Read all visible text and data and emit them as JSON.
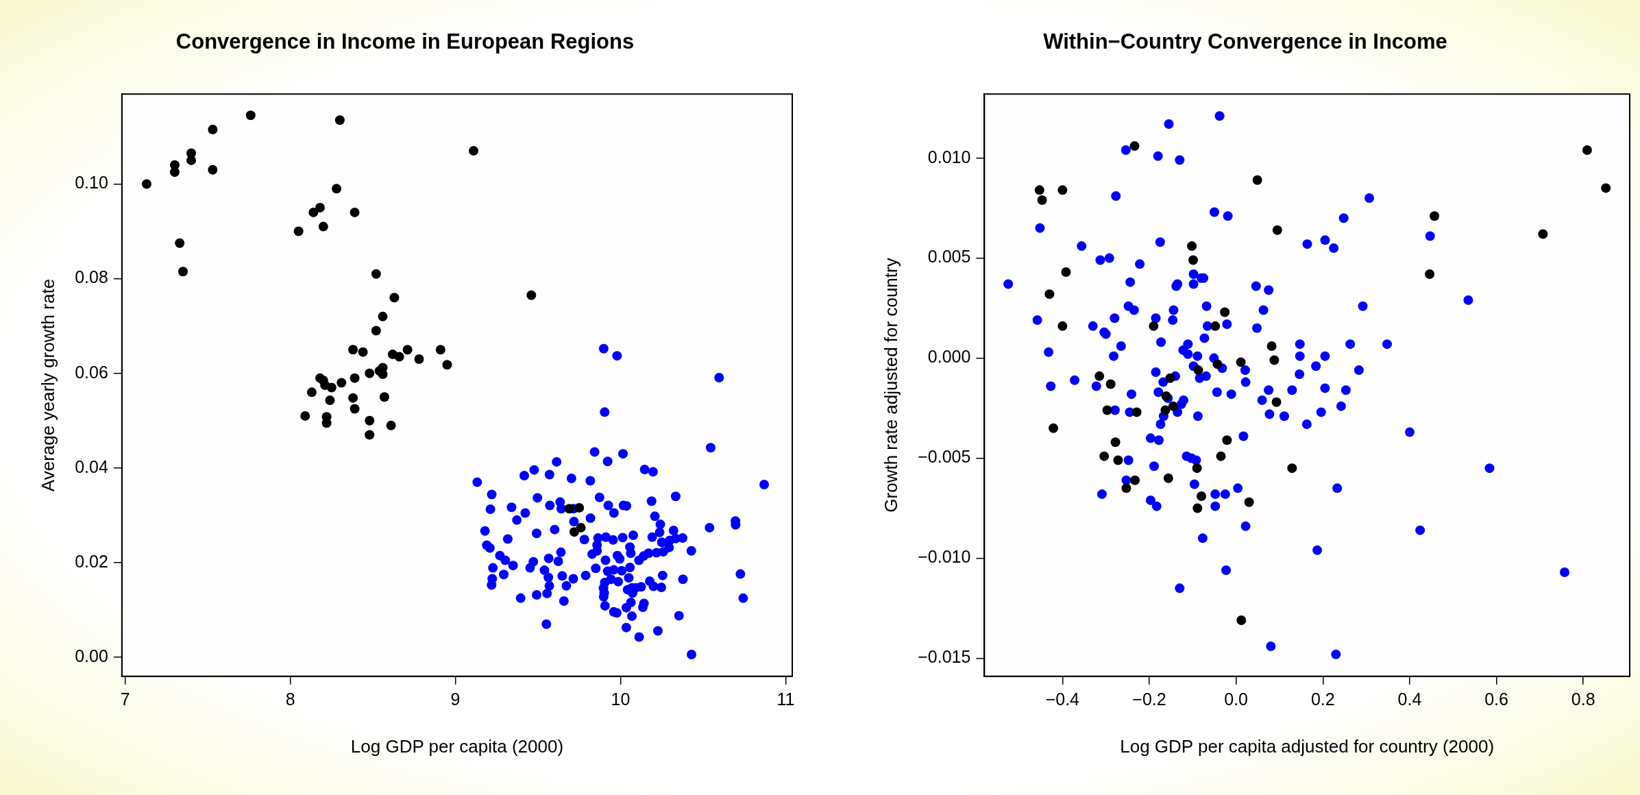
{
  "chart_data": [
    {
      "type": "scatter",
      "title": "Convergence in Income in European Regions",
      "xlabel": "Log GDP per capita (2000)",
      "ylabel": "Average yearly growth rate",
      "xlim": [
        6.98,
        11.04
      ],
      "ylim": [
        -0.004,
        0.119
      ],
      "xticks": [
        7,
        8,
        9,
        10,
        11
      ],
      "yticks": [
        {
          "value": 0,
          "label": "0.00"
        },
        {
          "value": 0.02,
          "label": "0.02"
        },
        {
          "value": 0.04,
          "label": "0.04"
        },
        {
          "value": 0.06,
          "label": "0.06"
        },
        {
          "value": 0.08,
          "label": "0.08"
        },
        {
          "value": 0.1,
          "label": "0.10"
        }
      ],
      "grid": false,
      "marker": "circle",
      "series": [
        {
          "color": "#000000",
          "x": [
            7.13,
            7.3,
            7.3,
            7.4,
            7.4,
            7.33,
            7.35,
            7.53,
            7.53,
            7.76,
            8.3,
            9.11,
            8.05,
            8.14,
            8.18,
            8.2,
            8.28,
            8.39,
            8.52,
            8.63,
            8.56,
            8.52,
            9.46,
            8.38,
            8.44,
            8.56,
            8.62,
            8.66,
            8.71,
            8.78,
            8.91,
            8.95,
            8.13,
            8.18,
            8.2,
            8.21,
            8.25,
            8.31,
            8.39,
            8.48,
            8.54,
            8.56,
            8.09,
            8.24,
            8.38,
            8.57,
            8.22,
            8.22,
            8.39,
            8.48,
            8.48,
            8.61,
            9.69,
            9.75,
            9.76,
            9.72
          ],
          "values": [
            0.1,
            0.104,
            0.1025,
            0.1065,
            0.105,
            0.0875,
            0.0815,
            0.1115,
            0.103,
            0.1145,
            0.1135,
            0.107,
            0.09,
            0.094,
            0.095,
            0.091,
            0.099,
            0.094,
            0.081,
            0.076,
            0.072,
            0.069,
            0.0765,
            0.065,
            0.0645,
            0.0612,
            0.064,
            0.0635,
            0.065,
            0.063,
            0.065,
            0.0618,
            0.056,
            0.059,
            0.0585,
            0.0575,
            0.057,
            0.058,
            0.059,
            0.06,
            0.0605,
            0.0598,
            0.051,
            0.0543,
            0.0548,
            0.055,
            0.0508,
            0.0495,
            0.0525,
            0.05,
            0.047,
            0.049,
            0.0314,
            0.0316,
            0.0274,
            0.0265
          ]
        },
        {
          "color": "#0000ff",
          "x": [
            9.898,
            9.979,
            10.597,
            9.904,
            9.843,
            10.015,
            9.922,
            10.546,
            9.613,
            9.477,
            9.417,
            9.57,
            9.703,
            9.817,
            10.146,
            10.197,
            10.87,
            9.132,
            9.22,
            9.497,
            9.873,
            10.334,
            10.188,
            9.212,
            9.34,
            9.423,
            9.372,
            9.572,
            9.634,
            9.641,
            9.715,
            9.718,
            9.818,
            9.926,
            9.96,
            10.018,
            10.036,
            10.208,
            10.241,
            10.321,
            10.539,
            10.696,
            10.697,
            9.179,
            9.317,
            9.492,
            9.601,
            9.781,
            9.864,
            9.911,
            9.955,
            10.013,
            10.077,
            10.192,
            10.237,
            10.25,
            10.298,
            10.335,
            10.376,
            10.294,
            10.429,
            9.19,
            9.209,
            9.858,
            10.057,
            10.062,
            9.858,
            9.828,
            9.981,
            9.995,
            10.112,
            10.14,
            10.17,
            10.218,
            10.259,
            9.269,
            9.302,
            9.349,
            9.639,
            9.565,
            9.623,
            9.472,
            9.227,
            9.452,
            9.539,
            9.909,
            9.85,
            9.922,
            9.959,
            10.007,
            10.057,
            10.05,
            9.293,
            9.563,
            9.647,
            9.714,
            9.789,
            9.942,
            9.986,
            9.904,
            10.177,
            10.255,
            10.378,
            10.726,
            9.223,
            9.219,
            9.569,
            9.672,
            9.897,
            9.901,
            9.898,
            10.043,
            10.069,
            10.094,
            10.125,
            10.073,
            10.199,
            10.247,
            10.743,
            9.395,
            9.492,
            9.555,
            9.657,
            9.906,
            10.063,
            10.142,
            10.135,
            10.035,
            9.959,
            9.977,
            10.069,
            10.354,
            9.551,
            10.035,
            10.226,
            10.113,
            10.43
          ],
          "values": [
            0.0652,
            0.0637,
            0.0591,
            0.0518,
            0.0434,
            0.043,
            0.0414,
            0.0443,
            0.0413,
            0.0396,
            0.0384,
            0.0386,
            0.0378,
            0.0373,
            0.0397,
            0.0392,
            0.0365,
            0.037,
            0.0344,
            0.0337,
            0.0338,
            0.034,
            0.033,
            0.0313,
            0.0317,
            0.0305,
            0.029,
            0.0321,
            0.0328,
            0.0314,
            0.0314,
            0.0287,
            0.0294,
            0.0321,
            0.0305,
            0.0321,
            0.032,
            0.0298,
            0.0281,
            0.0268,
            0.0274,
            0.0288,
            0.028,
            0.0267,
            0.025,
            0.0262,
            0.027,
            0.0249,
            0.0252,
            0.0254,
            0.0248,
            0.0253,
            0.0258,
            0.0254,
            0.0264,
            0.0243,
            0.0247,
            0.0251,
            0.0252,
            0.0232,
            0.0225,
            0.0237,
            0.0231,
            0.0237,
            0.0233,
            0.022,
            0.0225,
            0.0218,
            0.0215,
            0.0208,
            0.0205,
            0.0214,
            0.022,
            0.0221,
            0.0223,
            0.0215,
            0.0205,
            0.0194,
            0.0222,
            0.0209,
            0.0203,
            0.0202,
            0.0189,
            0.0189,
            0.0184,
            0.0205,
            0.0188,
            0.0182,
            0.0185,
            0.0183,
            0.019,
            0.0168,
            0.0175,
            0.0169,
            0.0172,
            0.0166,
            0.0173,
            0.0165,
            0.016,
            0.0158,
            0.0161,
            0.0173,
            0.0165,
            0.0176,
            0.0166,
            0.0153,
            0.0151,
            0.0151,
            0.0146,
            0.0136,
            0.0128,
            0.0143,
            0.0147,
            0.0147,
            0.0149,
            0.0136,
            0.015,
            0.0148,
            0.0125,
            0.0125,
            0.0132,
            0.0135,
            0.0119,
            0.0109,
            0.0116,
            0.0114,
            0.0106,
            0.0105,
            0.0096,
            0.0094,
            0.0087,
            0.0088,
            0.007,
            0.0063,
            0.0056,
            0.0043,
            0.0006
          ]
        }
      ]
    },
    {
      "type": "scatter",
      "title": "Within−Country Convergence in Income",
      "xlabel": "Log GDP per capita adjusted for country (2000)",
      "ylabel": "Growth rate adjusted for country",
      "xlim": [
        -0.58,
        0.907
      ],
      "ylim": [
        -0.0159,
        0.0132
      ],
      "xticks": [
        {
          "value": -0.4,
          "label": "−0.4"
        },
        {
          "value": -0.2,
          "label": "−0.2"
        },
        {
          "value": 0,
          "label": "0.0"
        },
        {
          "value": 0.2,
          "label": "0.2"
        },
        {
          "value": 0.4,
          "label": "0.4"
        },
        {
          "value": 0.6,
          "label": "0.6"
        },
        {
          "value": 0.8,
          "label": "0.8"
        }
      ],
      "yticks": [
        {
          "value": -0.015,
          "label": "−0.015"
        },
        {
          "value": -0.01,
          "label": "−0.010"
        },
        {
          "value": -0.005,
          "label": "−0.005"
        },
        {
          "value": 0,
          "label": "0.000"
        },
        {
          "value": 0.005,
          "label": "0.005"
        },
        {
          "value": 0.01,
          "label": "0.010"
        }
      ],
      "grid": false,
      "marker": "circle",
      "series": [
        {
          "color": "#000000",
          "x": [
            -0.234,
            -0.453,
            -0.447,
            -0.4,
            0.049,
            0.095,
            -0.102,
            -0.099,
            -0.392,
            -0.43,
            -0.4,
            -0.026,
            -0.19,
            -0.048,
            0.082,
            0.088,
            0.011,
            -0.043,
            -0.087,
            -0.152,
            -0.315,
            -0.289,
            -0.161,
            -0.145,
            -0.163,
            -0.297,
            -0.229,
            0.093,
            -0.421,
            -0.021,
            -0.278,
            -0.035,
            -0.304,
            -0.272,
            0.129,
            -0.09,
            -0.233,
            -0.156,
            -0.253,
            -0.08,
            0.03,
            -0.089,
            0.012,
            0.809,
            0.852,
            0.457,
            0.707,
            0.446
          ],
          "values": [
            0.0106,
            0.0084,
            0.0079,
            0.0084,
            0.0089,
            0.0064,
            0.0056,
            0.0049,
            0.0043,
            0.0032,
            0.0016,
            0.0023,
            0.0016,
            0.0016,
            0.0006,
            -0.0001,
            -0.0002,
            -0.0003,
            -0.0006,
            -0.001,
            -0.0009,
            -0.0013,
            -0.0019,
            -0.0024,
            -0.0026,
            -0.0026,
            -0.0027,
            -0.0022,
            -0.0035,
            -0.0041,
            -0.0042,
            -0.0049,
            -0.0049,
            -0.0051,
            -0.0055,
            -0.0055,
            -0.0061,
            -0.006,
            -0.0065,
            -0.0069,
            -0.0072,
            -0.0075,
            -0.0131,
            0.0104,
            0.0085,
            0.0071,
            0.0062,
            0.0042
          ]
        },
        {
          "color": "#0000ff",
          "x": [
            -0.038,
            -0.155,
            -0.254,
            -0.18,
            -0.13,
            -0.277,
            -0.452,
            -0.05,
            -0.019,
            -0.356,
            -0.175,
            -0.313,
            -0.292,
            -0.222,
            -0.525,
            -0.244,
            -0.098,
            -0.098,
            -0.08,
            -0.075,
            -0.138,
            -0.135,
            0.046,
            0.075,
            -0.248,
            -0.235,
            -0.144,
            -0.146,
            0.063,
            -0.458,
            -0.28,
            -0.185,
            -0.33,
            -0.304,
            -0.3,
            -0.068,
            -0.066,
            -0.021,
            0.048,
            -0.073,
            -0.173,
            -0.111,
            -0.122,
            -0.111,
            -0.432,
            -0.265,
            -0.282,
            -0.089,
            -0.051,
            -0.098,
            -0.032,
            0.021,
            -0.185,
            -0.084,
            -0.069,
            0.022,
            -0.14,
            -0.168,
            -0.372,
            -0.427,
            -0.322,
            -0.044,
            -0.179,
            0.075,
            0.06,
            0.129,
            -0.011,
            -0.157,
            -0.121,
            -0.126,
            -0.241,
            -0.279,
            -0.245,
            -0.135,
            -0.088,
            0.077,
            0.111,
            -0.167,
            -0.174,
            -0.197,
            -0.178,
            0.017,
            -0.114,
            -0.103,
            -0.092,
            -0.248,
            -0.189,
            -0.253,
            -0.309,
            -0.096,
            0.004,
            -0.048,
            -0.025,
            -0.197,
            -0.183,
            -0.048,
            0.022,
            -0.077,
            -0.023,
            -0.13,
            0.08,
            0.147,
            0.147,
            0.146,
            0.307,
            0.248,
            0.164,
            0.205,
            0.225,
            0.447,
            0.535,
            0.292,
            0.263,
            0.348,
            0.205,
            0.184,
            0.283,
            0.205,
            0.253,
            0.242,
            0.196,
            0.163,
            0.4,
            0.584,
            0.233,
            0.424,
            0.187,
            0.757,
            0.23
          ],
          "values": [
            0.0121,
            0.0117,
            0.0104,
            0.0101,
            0.0099,
            0.0081,
            0.0065,
            0.0073,
            0.0071,
            0.0056,
            0.0058,
            0.0049,
            0.005,
            0.0047,
            0.0037,
            0.0038,
            0.0042,
            0.0037,
            0.004,
            0.004,
            0.0036,
            0.0037,
            0.0036,
            0.0034,
            0.0026,
            0.0024,
            0.0024,
            0.0019,
            0.0024,
            0.0019,
            0.002,
            0.002,
            0.0016,
            0.0013,
            0.0012,
            0.0026,
            0.0016,
            0.0017,
            0.0015,
            0.001,
            0.0008,
            0.0007,
            0.0004,
            0.0002,
            0.0003,
            0.0006,
            0.0001,
            0.0001,
            0.0,
            -0.0004,
            -0.0005,
            -0.0006,
            -0.0007,
            -0.001,
            -0.0009,
            -0.0012,
            -0.0009,
            -0.0012,
            -0.0011,
            -0.0014,
            -0.0014,
            -0.0017,
            -0.0017,
            -0.0016,
            -0.0021,
            -0.0016,
            -0.0018,
            -0.002,
            -0.0021,
            -0.0023,
            -0.0018,
            -0.0026,
            -0.0027,
            -0.0027,
            -0.0029,
            -0.0028,
            -0.0029,
            -0.0029,
            -0.0033,
            -0.004,
            -0.0041,
            -0.0039,
            -0.0049,
            -0.005,
            -0.0051,
            -0.0051,
            -0.0054,
            -0.0061,
            -0.0068,
            -0.0063,
            -0.0065,
            -0.0068,
            -0.0068,
            -0.0071,
            -0.0074,
            -0.0074,
            -0.0084,
            -0.009,
            -0.0106,
            -0.0115,
            -0.0144,
            0.0007,
            0.0001,
            -0.0008,
            0.008,
            0.007,
            0.0057,
            0.0059,
            0.0055,
            0.0061,
            0.0029,
            0.0026,
            0.0007,
            0.0007,
            0.0001,
            -0.0004,
            -0.0006,
            -0.0015,
            -0.0016,
            -0.0024,
            -0.0027,
            -0.0033,
            -0.0037,
            -0.0055,
            -0.0065,
            -0.0086,
            -0.0096,
            -0.0107,
            -0.0148
          ]
        }
      ]
    }
  ]
}
